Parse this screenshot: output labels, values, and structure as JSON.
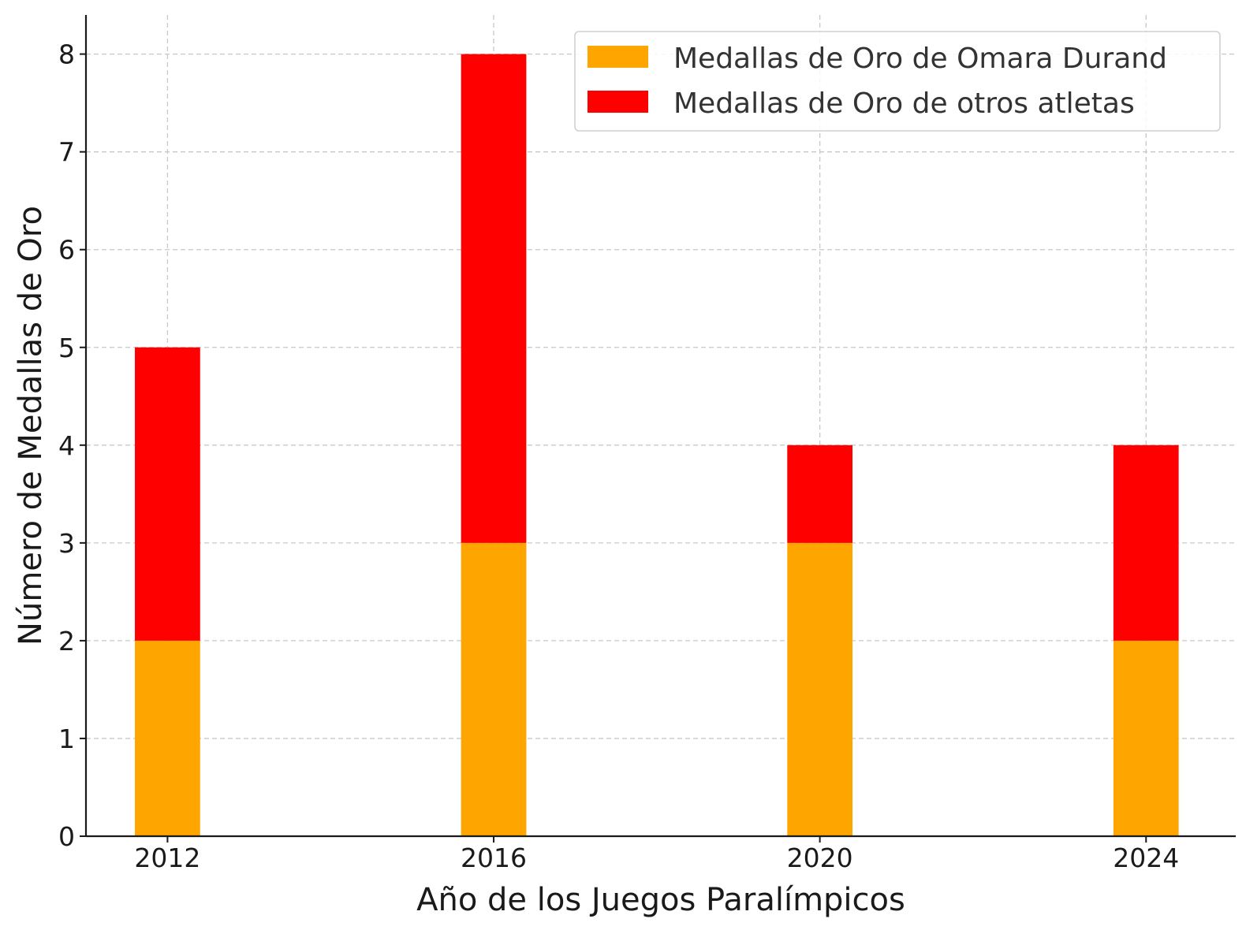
{
  "chart_data": {
    "type": "bar",
    "stacked": true,
    "categories": [
      "2012",
      "2016",
      "2020",
      "2024"
    ],
    "series": [
      {
        "name": "Medallas de Oro de Omara Durand",
        "values": [
          2,
          3,
          3,
          2
        ],
        "color": "#FFA500"
      },
      {
        "name": "Medallas de Oro de otros atletas",
        "values": [
          3,
          5,
          1,
          2
        ],
        "color": "#FF0000"
      }
    ],
    "title": "",
    "xlabel": "Año de los Juegos Paralímpicos",
    "ylabel": "Número de Medallas de Oro",
    "x_values": [
      2012,
      2016,
      2020,
      2024
    ],
    "xlim": [
      2011,
      2025.1
    ],
    "ylim": [
      0,
      8.4
    ],
    "yticks": [
      0,
      1,
      2,
      3,
      4,
      5,
      6,
      7,
      8
    ],
    "grid": true,
    "legend_position": "top-right"
  }
}
